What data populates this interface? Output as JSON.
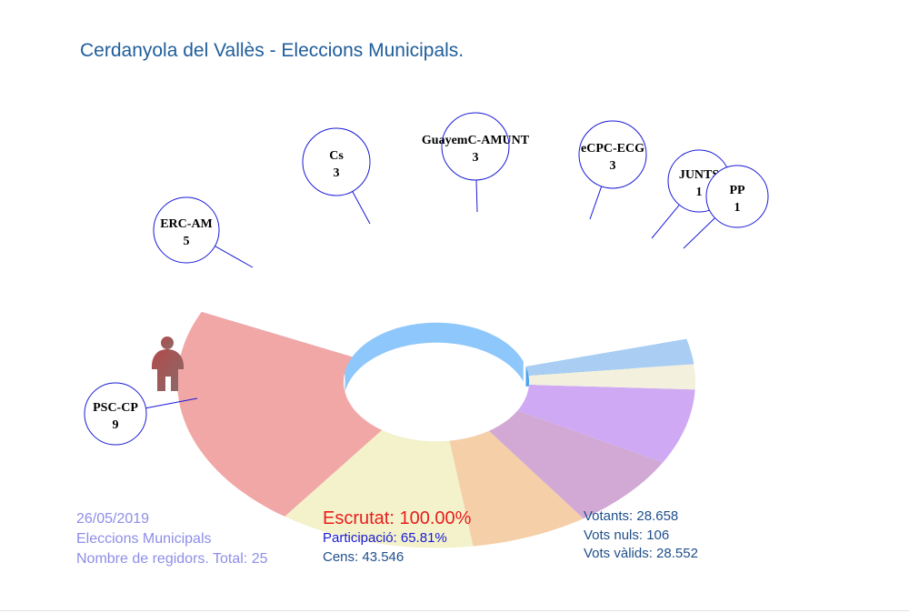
{
  "title": "Cerdanyola del Vallès - Eleccions Municipals.",
  "chart_data": {
    "type": "pie",
    "subtype": "hemicycle-3d",
    "total_seats": 25,
    "series": [
      {
        "name": "PSC-CP",
        "seats": 9,
        "color": "#f2a7a7"
      },
      {
        "name": "ERC-AM",
        "seats": 5,
        "color": "#f3f2cb"
      },
      {
        "name": "Cs",
        "seats": 3,
        "color": "#f4cfa8"
      },
      {
        "name": "GuayemC-AMUNT",
        "seats": 3,
        "color": "#d1a9d4"
      },
      {
        "name": "eCPC-ECG",
        "seats": 3,
        "color": "#cfa9f4"
      },
      {
        "name": "JUNTS",
        "seats": 1,
        "color": "#f3f1de"
      },
      {
        "name": "PP",
        "seats": 1,
        "color": "#a9cdf3"
      }
    ],
    "side_color": "#8ec7fb",
    "side_dark_color": "#4aa3f2",
    "label_border_color": "#1a1ad6",
    "winner_icon": "person-icon"
  },
  "info": {
    "date": "26/05/2019",
    "election": "Eleccions Municipals",
    "regidors_label": "Nombre de regidors. Total: 25",
    "escrutat_label": "Escrutat:",
    "escrutat_value": "100.00%",
    "participacio_label": "Participació:",
    "participacio_value": "65.81%",
    "cens_label": "Cens:",
    "cens_value": "43.546",
    "votants_label": "Votants:",
    "votants_value": "28.658",
    "nuls_label": "Vots nuls:",
    "nuls_value": "106",
    "valids_label": "Vots vàlids:",
    "valids_value": "28.552"
  }
}
